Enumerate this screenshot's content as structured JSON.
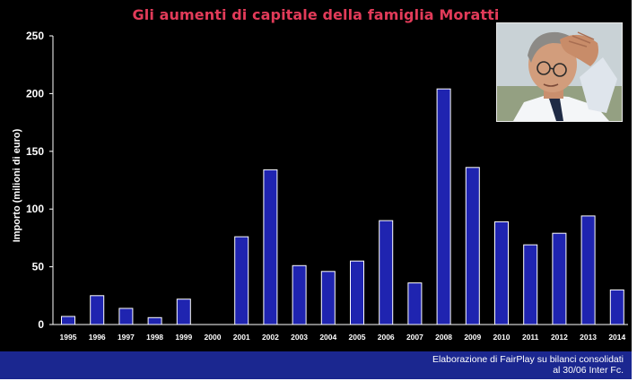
{
  "title": "Gli aumenti di capitale della famiglia Moratti",
  "footer": {
    "line1": "Elaborazione di FairPlay su bilanci consolidati",
    "line2": "al 30/06 Inter Fc."
  },
  "photo": {
    "subject": "man-with-hand-on-head-photo"
  },
  "colors": {
    "background": "#000000",
    "bar": "#1f24b0",
    "bar_outline": "#ffffff",
    "title": "#e23b59",
    "footer_band": "#1b2790",
    "axis": "#ffffff"
  },
  "chart_data": {
    "type": "bar",
    "title": "Gli aumenti di capitale della famiglia Moratti",
    "xlabel": "",
    "ylabel": "Importo (milioni di euro)",
    "ylim": [
      0,
      250
    ],
    "yticks": [
      0,
      50,
      100,
      150,
      200,
      250
    ],
    "grid": false,
    "legend": "none",
    "categories": [
      "1995",
      "1996",
      "1997",
      "1998",
      "1999",
      "2000",
      "2001",
      "2002",
      "2003",
      "2004",
      "2005",
      "2006",
      "2007",
      "2008",
      "2009",
      "2010",
      "2011",
      "2012",
      "2013",
      "2014"
    ],
    "values": [
      7,
      25,
      14,
      6,
      22,
      0,
      76,
      134,
      51,
      46,
      55,
      90,
      36,
      204,
      136,
      89,
      69,
      79,
      94,
      30
    ]
  }
}
